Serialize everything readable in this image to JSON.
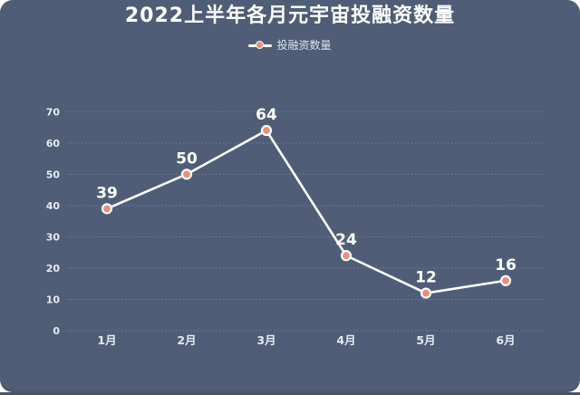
{
  "header": {
    "title": "2022上半年各月元宇宙投融资数量"
  },
  "legend": {
    "label": "投融资数量"
  },
  "colors": {
    "page_background": "#FFFFFF",
    "card_background": "#4F5E76",
    "bottom_band": "#4A5466",
    "title_text": "#FFFFFF",
    "legend_text": "#DCE2EA",
    "line": "#FFFFFF",
    "marker_fill": "#E98F78",
    "marker_border": "#FFFFFF",
    "grid_line": "#FFFFFF",
    "axis_label": "#E6EBF2",
    "data_label": "#FFFFFF"
  },
  "chart_data": {
    "type": "line",
    "title": "2022上半年各月元宇宙投融资数量",
    "categories": [
      "1月",
      "2月",
      "3月",
      "4月",
      "5月",
      "6月"
    ],
    "series": [
      {
        "name": "投融资数量",
        "values": [
          39,
          50,
          64,
          24,
          12,
          16
        ]
      }
    ],
    "xlabel": "",
    "ylabel": "",
    "ylim": [
      0,
      70
    ],
    "yticks": [
      0,
      10,
      20,
      30,
      40,
      50,
      60,
      70
    ],
    "grid": "horizontal-dotted",
    "legend_position": "top-center",
    "data_labels": true
  }
}
